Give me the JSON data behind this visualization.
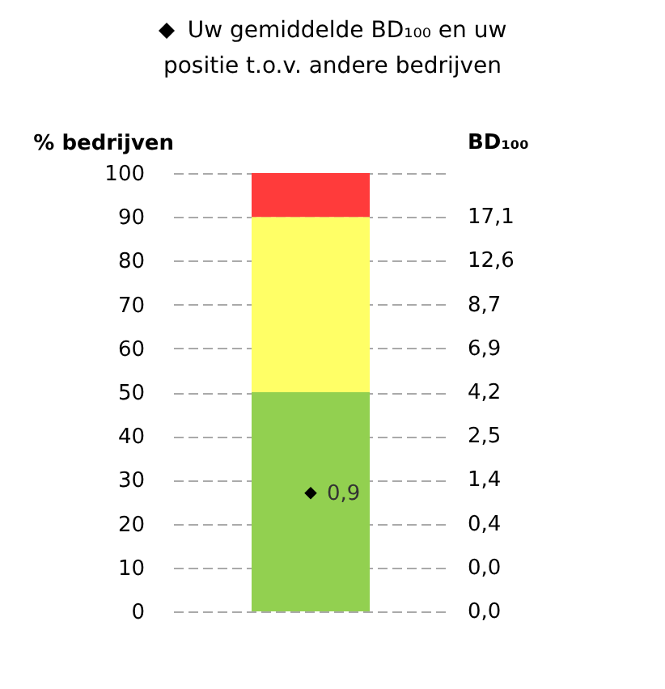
{
  "chart_data": {
    "type": "bar",
    "stacked": true,
    "categories": [
      null
    ],
    "series": [
      {
        "color": "#92d050",
        "values": [
          50
        ]
      },
      {
        "color": "#ffff66",
        "values": [
          40
        ]
      },
      {
        "color": "#ff3b3b",
        "values": [
          10
        ]
      },
      {
        "type": "scatter",
        "name": "Uw gemiddelde BD₁₀₀ en uw positie t.o.v. andere bedrijven",
        "color": "#000000",
        "marker": "diamond",
        "x": [
          null
        ],
        "values": [
          27
        ]
      }
    ],
    "ylabel": "% bedrijven",
    "ylim": [
      0,
      100
    ],
    "yticks": [
      0,
      10,
      20,
      30,
      40,
      50,
      60,
      70,
      80,
      90,
      100
    ],
    "annotations": [
      "BD₁₀₀",
      "17,1",
      "12,6",
      "8,7",
      "6,9",
      "4,2",
      "2,5",
      "1,4",
      "0,4",
      "0,0",
      "0,0",
      "0,9"
    ],
    "grid": "y",
    "legend": "top"
  }
}
